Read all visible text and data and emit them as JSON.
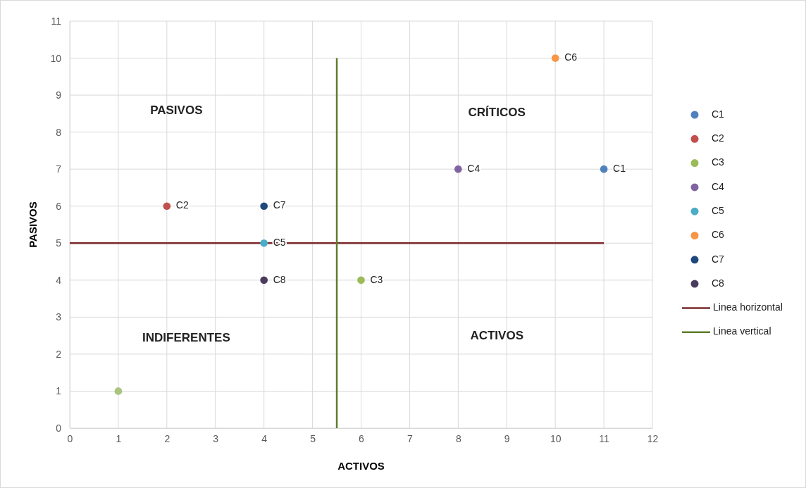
{
  "chart_data": {
    "type": "scatter",
    "xlabel": "ACTIVOS",
    "ylabel": "PASIVOS",
    "xlim": [
      0,
      12
    ],
    "ylim": [
      0,
      11
    ],
    "xticks": [
      0,
      1,
      2,
      3,
      4,
      5,
      6,
      7,
      8,
      9,
      10,
      11,
      12
    ],
    "yticks": [
      0,
      1,
      2,
      3,
      4,
      5,
      6,
      7,
      8,
      9,
      10,
      11
    ],
    "grid": true,
    "legend": "right",
    "marker": "circle",
    "series": [
      {
        "name": "C1",
        "color": "#4f81bd",
        "x": [
          11
        ],
        "values": [
          7
        ]
      },
      {
        "name": "C2",
        "color": "#c0504d",
        "x": [
          2
        ],
        "values": [
          6
        ]
      },
      {
        "name": "C3",
        "color": "#9bbb59",
        "x": [
          6
        ],
        "values": [
          4
        ]
      },
      {
        "name": "C4",
        "color": "#8064a2",
        "x": [
          8
        ],
        "values": [
          7
        ]
      },
      {
        "name": "C5",
        "color": "#4bacc6",
        "x": [
          4
        ],
        "values": [
          5
        ]
      },
      {
        "name": "C6",
        "color": "#f79646",
        "x": [
          10
        ],
        "values": [
          10
        ]
      },
      {
        "name": "C7",
        "color": "#1f497d",
        "x": [
          4
        ],
        "values": [
          6
        ]
      },
      {
        "name": "C8",
        "color": "#4a3c5e",
        "x": [
          4
        ],
        "values": [
          4
        ]
      },
      {
        "color": "#a9c47f",
        "x": [
          1
        ],
        "values": [
          1
        ]
      },
      {
        "name": "Linea horizontal",
        "type": "line",
        "color": "#7b2a2a",
        "marker": "none",
        "x": [
          0,
          11
        ],
        "values": [
          5,
          5
        ]
      },
      {
        "name": "Linea vertical",
        "type": "line",
        "color": "#5e7e2c",
        "marker": "none",
        "x": [
          5.5,
          5.5
        ],
        "values": [
          0,
          10
        ]
      }
    ],
    "annotations": [
      "PASIVOS",
      "CRÍTICOS",
      "INDIFERENTES",
      "ACTIVOS"
    ]
  }
}
